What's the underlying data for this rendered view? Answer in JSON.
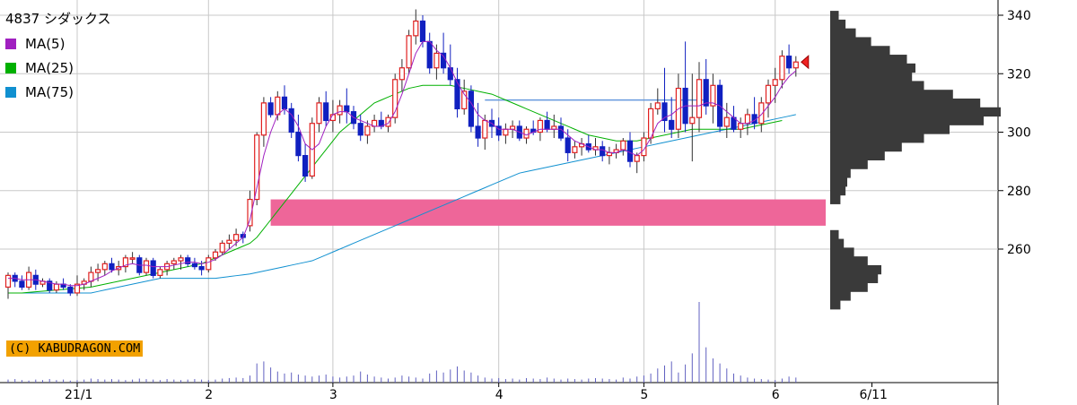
{
  "chart_data": {
    "type": "candlestick",
    "title": "4837 シダックス",
    "legend": [
      {
        "name": "MA(5)",
        "color": "#a020c0"
      },
      {
        "name": "MA(25)",
        "color": "#00b000"
      },
      {
        "name": "MA(75)",
        "color": "#1090d0"
      }
    ],
    "y_ticks": [
      340,
      320,
      300,
      280,
      260
    ],
    "ylim": [
      232,
      343
    ],
    "x_labels": [
      {
        "label": "21/1",
        "t": 10
      },
      {
        "label": "2",
        "t": 29
      },
      {
        "label": "3",
        "t": 47
      },
      {
        "label": "4",
        "t": 71
      },
      {
        "label": "5",
        "t": 92
      },
      {
        "label": "6",
        "t": 111
      },
      {
        "label": "6/11",
        "t": 125
      }
    ],
    "copyright": "(C) KABUDRAGON.COM",
    "candles": [
      [
        247,
        252,
        243,
        251
      ],
      [
        251,
        252,
        247,
        249
      ],
      [
        249,
        251,
        246,
        247
      ],
      [
        247,
        254,
        246,
        252
      ],
      [
        251,
        253,
        246,
        248
      ],
      [
        248,
        250,
        247,
        249
      ],
      [
        249,
        250,
        245,
        246
      ],
      [
        246,
        249,
        245,
        248
      ],
      [
        248,
        250,
        246,
        247
      ],
      [
        247,
        248,
        244,
        245
      ],
      [
        245,
        251,
        244,
        248
      ],
      [
        248,
        250,
        246,
        249
      ],
      [
        249,
        254,
        247,
        252
      ],
      [
        252,
        255,
        249,
        253
      ],
      [
        253,
        256,
        251,
        255
      ],
      [
        255,
        257,
        252,
        253
      ],
      [
        253,
        256,
        251,
        254
      ],
      [
        254,
        258,
        252,
        257
      ],
      [
        257,
        259,
        255,
        257
      ],
      [
        257,
        258,
        251,
        252
      ],
      [
        252,
        257,
        251,
        256
      ],
      [
        256,
        257,
        250,
        251
      ],
      [
        251,
        254,
        250,
        253
      ],
      [
        253,
        256,
        251,
        255
      ],
      [
        255,
        257,
        253,
        256
      ],
      [
        256,
        258,
        253,
        257
      ],
      [
        257,
        258,
        254,
        255
      ],
      [
        255,
        257,
        253,
        254
      ],
      [
        254,
        256,
        251,
        253
      ],
      [
        253,
        258,
        252,
        257
      ],
      [
        257,
        260,
        256,
        259
      ],
      [
        259,
        263,
        258,
        262
      ],
      [
        262,
        265,
        260,
        263
      ],
      [
        263,
        267,
        261,
        265
      ],
      [
        265,
        266,
        262,
        264
      ],
      [
        268,
        280,
        266,
        277
      ],
      [
        277,
        300,
        275,
        299
      ],
      [
        299,
        312,
        295,
        310
      ],
      [
        310,
        312,
        305,
        306
      ],
      [
        306,
        314,
        304,
        312
      ],
      [
        312,
        316,
        306,
        308
      ],
      [
        308,
        310,
        298,
        300
      ],
      [
        300,
        306,
        290,
        292
      ],
      [
        292,
        296,
        283,
        285
      ],
      [
        285,
        305,
        284,
        303
      ],
      [
        303,
        312,
        300,
        310
      ],
      [
        310,
        314,
        302,
        304
      ],
      [
        304,
        311,
        300,
        306
      ],
      [
        306,
        311,
        303,
        309
      ],
      [
        309,
        315,
        303,
        307
      ],
      [
        307,
        309,
        301,
        303
      ],
      [
        303,
        306,
        297,
        299
      ],
      [
        299,
        304,
        296,
        302
      ],
      [
        302,
        306,
        300,
        304
      ],
      [
        304,
        307,
        301,
        302
      ],
      [
        302,
        306,
        300,
        305
      ],
      [
        305,
        320,
        303,
        318
      ],
      [
        318,
        325,
        314,
        322
      ],
      [
        322,
        335,
        320,
        333
      ],
      [
        333,
        342,
        330,
        338
      ],
      [
        338,
        340,
        329,
        331
      ],
      [
        331,
        334,
        320,
        322
      ],
      [
        322,
        330,
        318,
        327
      ],
      [
        327,
        334,
        320,
        322
      ],
      [
        322,
        330,
        316,
        318
      ],
      [
        318,
        322,
        305,
        308
      ],
      [
        308,
        318,
        306,
        314
      ],
      [
        314,
        316,
        300,
        302
      ],
      [
        302,
        310,
        295,
        298
      ],
      [
        298,
        306,
        294,
        304
      ],
      [
        304,
        308,
        298,
        302
      ],
      [
        302,
        305,
        297,
        299
      ],
      [
        299,
        303,
        296,
        301
      ],
      [
        301,
        304,
        298,
        302
      ],
      [
        302,
        304,
        297,
        298
      ],
      [
        298,
        302,
        296,
        301
      ],
      [
        301,
        304,
        299,
        300
      ],
      [
        300,
        305,
        297,
        304
      ],
      [
        304,
        307,
        300,
        301
      ],
      [
        301,
        306,
        298,
        302
      ],
      [
        302,
        305,
        297,
        298
      ],
      [
        298,
        301,
        290,
        293
      ],
      [
        293,
        297,
        291,
        295
      ],
      [
        295,
        298,
        292,
        296
      ],
      [
        296,
        299,
        293,
        294
      ],
      [
        294,
        298,
        292,
        295
      ],
      [
        295,
        297,
        290,
        292
      ],
      [
        292,
        295,
        289,
        293
      ],
      [
        293,
        296,
        291,
        294
      ],
      [
        294,
        298,
        292,
        297
      ],
      [
        297,
        300,
        288,
        290
      ],
      [
        290,
        293,
        286,
        292
      ],
      [
        292,
        300,
        290,
        298
      ],
      [
        298,
        310,
        296,
        308
      ],
      [
        308,
        315,
        306,
        310
      ],
      [
        310,
        322,
        300,
        304
      ],
      [
        304,
        312,
        298,
        301
      ],
      [
        301,
        320,
        298,
        315
      ],
      [
        315,
        331,
        300,
        303
      ],
      [
        303,
        320,
        290,
        305
      ],
      [
        305,
        324,
        300,
        318
      ],
      [
        318,
        325,
        306,
        309
      ],
      [
        309,
        320,
        303,
        316
      ],
      [
        316,
        318,
        300,
        302
      ],
      [
        302,
        310,
        298,
        305
      ],
      [
        305,
        309,
        300,
        301
      ],
      [
        301,
        305,
        298,
        303
      ],
      [
        303,
        308,
        299,
        306
      ],
      [
        306,
        312,
        301,
        303
      ],
      [
        303,
        312,
        300,
        310
      ],
      [
        310,
        318,
        305,
        316
      ],
      [
        316,
        322,
        310,
        318
      ],
      [
        318,
        328,
        315,
        326
      ],
      [
        326,
        330,
        320,
        322
      ],
      [
        322,
        326,
        319,
        324
      ]
    ],
    "ma5": [
      250,
      250,
      249.5,
      249.5,
      249.5,
      249,
      248.5,
      248,
      248,
      247.5,
      247.5,
      248,
      249,
      250,
      251,
      252.5,
      253.5,
      254.5,
      255,
      254.5,
      254.5,
      254,
      254,
      254,
      254.5,
      255,
      255.5,
      255.5,
      255,
      255.5,
      256.5,
      258,
      260,
      262,
      264,
      270,
      281,
      292,
      300,
      306,
      308,
      306,
      302,
      296,
      294,
      296,
      302,
      306,
      307,
      307,
      305,
      304,
      303,
      302,
      302,
      303,
      307,
      313,
      320,
      327,
      331,
      331,
      328,
      326,
      322,
      317,
      313,
      310,
      306,
      304,
      303,
      301,
      301,
      301,
      300,
      299,
      300,
      301,
      301,
      301,
      301,
      299,
      297,
      296,
      295,
      294,
      294,
      293,
      293,
      294,
      293,
      292,
      294,
      298,
      303,
      305,
      306,
      308,
      309,
      309,
      309,
      310,
      310,
      309,
      307,
      305,
      303,
      303,
      304,
      306,
      309,
      312,
      316,
      319,
      321
    ],
    "ma25": [
      245,
      245,
      245,
      245.2,
      245.4,
      245.6,
      245.8,
      246,
      246.2,
      246.4,
      246.6,
      246.8,
      247,
      247.5,
      248,
      248.5,
      249,
      249.5,
      250,
      250.5,
      251,
      251.5,
      252,
      252.5,
      253,
      253.5,
      254,
      254.5,
      255,
      256,
      257,
      258,
      259,
      260,
      261,
      262,
      264,
      267,
      270,
      273,
      276,
      279,
      282,
      285,
      288,
      291,
      294,
      297,
      300,
      302,
      304,
      306,
      308,
      310,
      311,
      312,
      313,
      314,
      315,
      315.5,
      316,
      316,
      316,
      316,
      316,
      315.5,
      315,
      314.5,
      314,
      313.5,
      313,
      312,
      311,
      310,
      309,
      308,
      307,
      306,
      305,
      304,
      303,
      302,
      301,
      300,
      299,
      298.5,
      298,
      297.5,
      297,
      297,
      297,
      297,
      297.5,
      298,
      298.5,
      299,
      299.5,
      300,
      300.5,
      301,
      301,
      301,
      301,
      301,
      301,
      301,
      301,
      301.5,
      302,
      302.5,
      303,
      303.5,
      304
    ],
    "ma75": [
      245,
      245,
      245,
      245,
      245,
      245,
      245,
      245,
      245,
      245,
      245,
      245,
      245,
      245.5,
      246,
      246.5,
      247,
      247.5,
      248,
      248.5,
      249,
      249.5,
      250,
      250,
      250,
      250,
      250,
      250,
      250,
      250,
      250,
      250.3,
      250.6,
      250.9,
      251.2,
      251.5,
      252,
      252.5,
      253,
      253.5,
      254,
      254.5,
      255,
      255.5,
      256,
      257,
      258,
      259,
      260,
      261,
      262,
      263,
      264,
      265,
      266,
      267,
      268,
      269,
      270,
      271,
      272,
      273,
      274,
      275,
      276,
      277,
      278,
      279,
      280,
      281,
      282,
      283,
      284,
      285,
      286,
      286.5,
      287,
      287.5,
      288,
      288.5,
      289,
      289.5,
      290,
      290.5,
      291,
      291.5,
      292,
      292.5,
      293,
      293.5,
      294,
      294.5,
      295,
      295.5,
      296,
      296.5,
      297,
      297.5,
      298,
      298.5,
      299,
      299.5,
      300,
      300.5,
      301,
      301.5,
      302,
      302.5,
      303,
      303.5,
      304,
      304.5,
      305,
      305.5,
      306
    ],
    "volume": [
      6,
      7,
      5,
      4,
      6,
      5,
      7,
      5,
      6,
      4,
      5,
      6,
      8,
      7,
      6,
      7,
      6,
      5,
      6,
      8,
      7,
      6,
      5,
      7,
      6,
      5,
      6,
      7,
      6,
      5,
      6,
      8,
      9,
      10,
      9,
      14,
      38,
      42,
      30,
      22,
      18,
      20,
      16,
      14,
      12,
      14,
      16,
      12,
      10,
      12,
      14,
      22,
      16,
      12,
      10,
      8,
      10,
      14,
      12,
      10,
      8,
      18,
      24,
      20,
      26,
      32,
      24,
      20,
      14,
      10,
      8,
      9,
      7,
      8,
      6,
      9,
      8,
      7,
      10,
      8,
      6,
      8,
      7,
      6,
      8,
      9,
      8,
      7,
      6,
      10,
      8,
      12,
      14,
      18,
      28,
      34,
      42,
      20,
      36,
      58,
      160,
      70,
      48,
      38,
      28,
      18,
      14,
      10,
      8,
      7,
      6,
      5,
      8,
      12,
      10
    ],
    "band": {
      "low": 268,
      "high": 277
    },
    "resistance_line": {
      "value": 311
    },
    "volume_profile": [
      {
        "price": 340,
        "vol": 0.05
      },
      {
        "price": 337,
        "vol": 0.09
      },
      {
        "price": 334,
        "vol": 0.15
      },
      {
        "price": 331,
        "vol": 0.24
      },
      {
        "price": 328,
        "vol": 0.35
      },
      {
        "price": 325,
        "vol": 0.45
      },
      {
        "price": 322,
        "vol": 0.5
      },
      {
        "price": 319,
        "vol": 0.48
      },
      {
        "price": 316,
        "vol": 0.55
      },
      {
        "price": 313,
        "vol": 0.72
      },
      {
        "price": 310,
        "vol": 0.88
      },
      {
        "price": 307,
        "vol": 1.0
      },
      {
        "price": 304,
        "vol": 0.9
      },
      {
        "price": 301,
        "vol": 0.7
      },
      {
        "price": 298,
        "vol": 0.55
      },
      {
        "price": 295,
        "vol": 0.42
      },
      {
        "price": 292,
        "vol": 0.32
      },
      {
        "price": 289,
        "vol": 0.22
      },
      {
        "price": 286,
        "vol": 0.12
      },
      {
        "price": 283,
        "vol": 0.1
      },
      {
        "price": 280,
        "vol": 0.09
      },
      {
        "price": 277,
        "vol": 0.06
      },
      {
        "price": 265,
        "vol": 0.05
      },
      {
        "price": 262,
        "vol": 0.08
      },
      {
        "price": 259,
        "vol": 0.14
      },
      {
        "price": 256,
        "vol": 0.22
      },
      {
        "price": 253,
        "vol": 0.3
      },
      {
        "price": 250,
        "vol": 0.28
      },
      {
        "price": 247,
        "vol": 0.22
      },
      {
        "price": 244,
        "vol": 0.12
      },
      {
        "price": 241,
        "vol": 0.06
      }
    ]
  }
}
